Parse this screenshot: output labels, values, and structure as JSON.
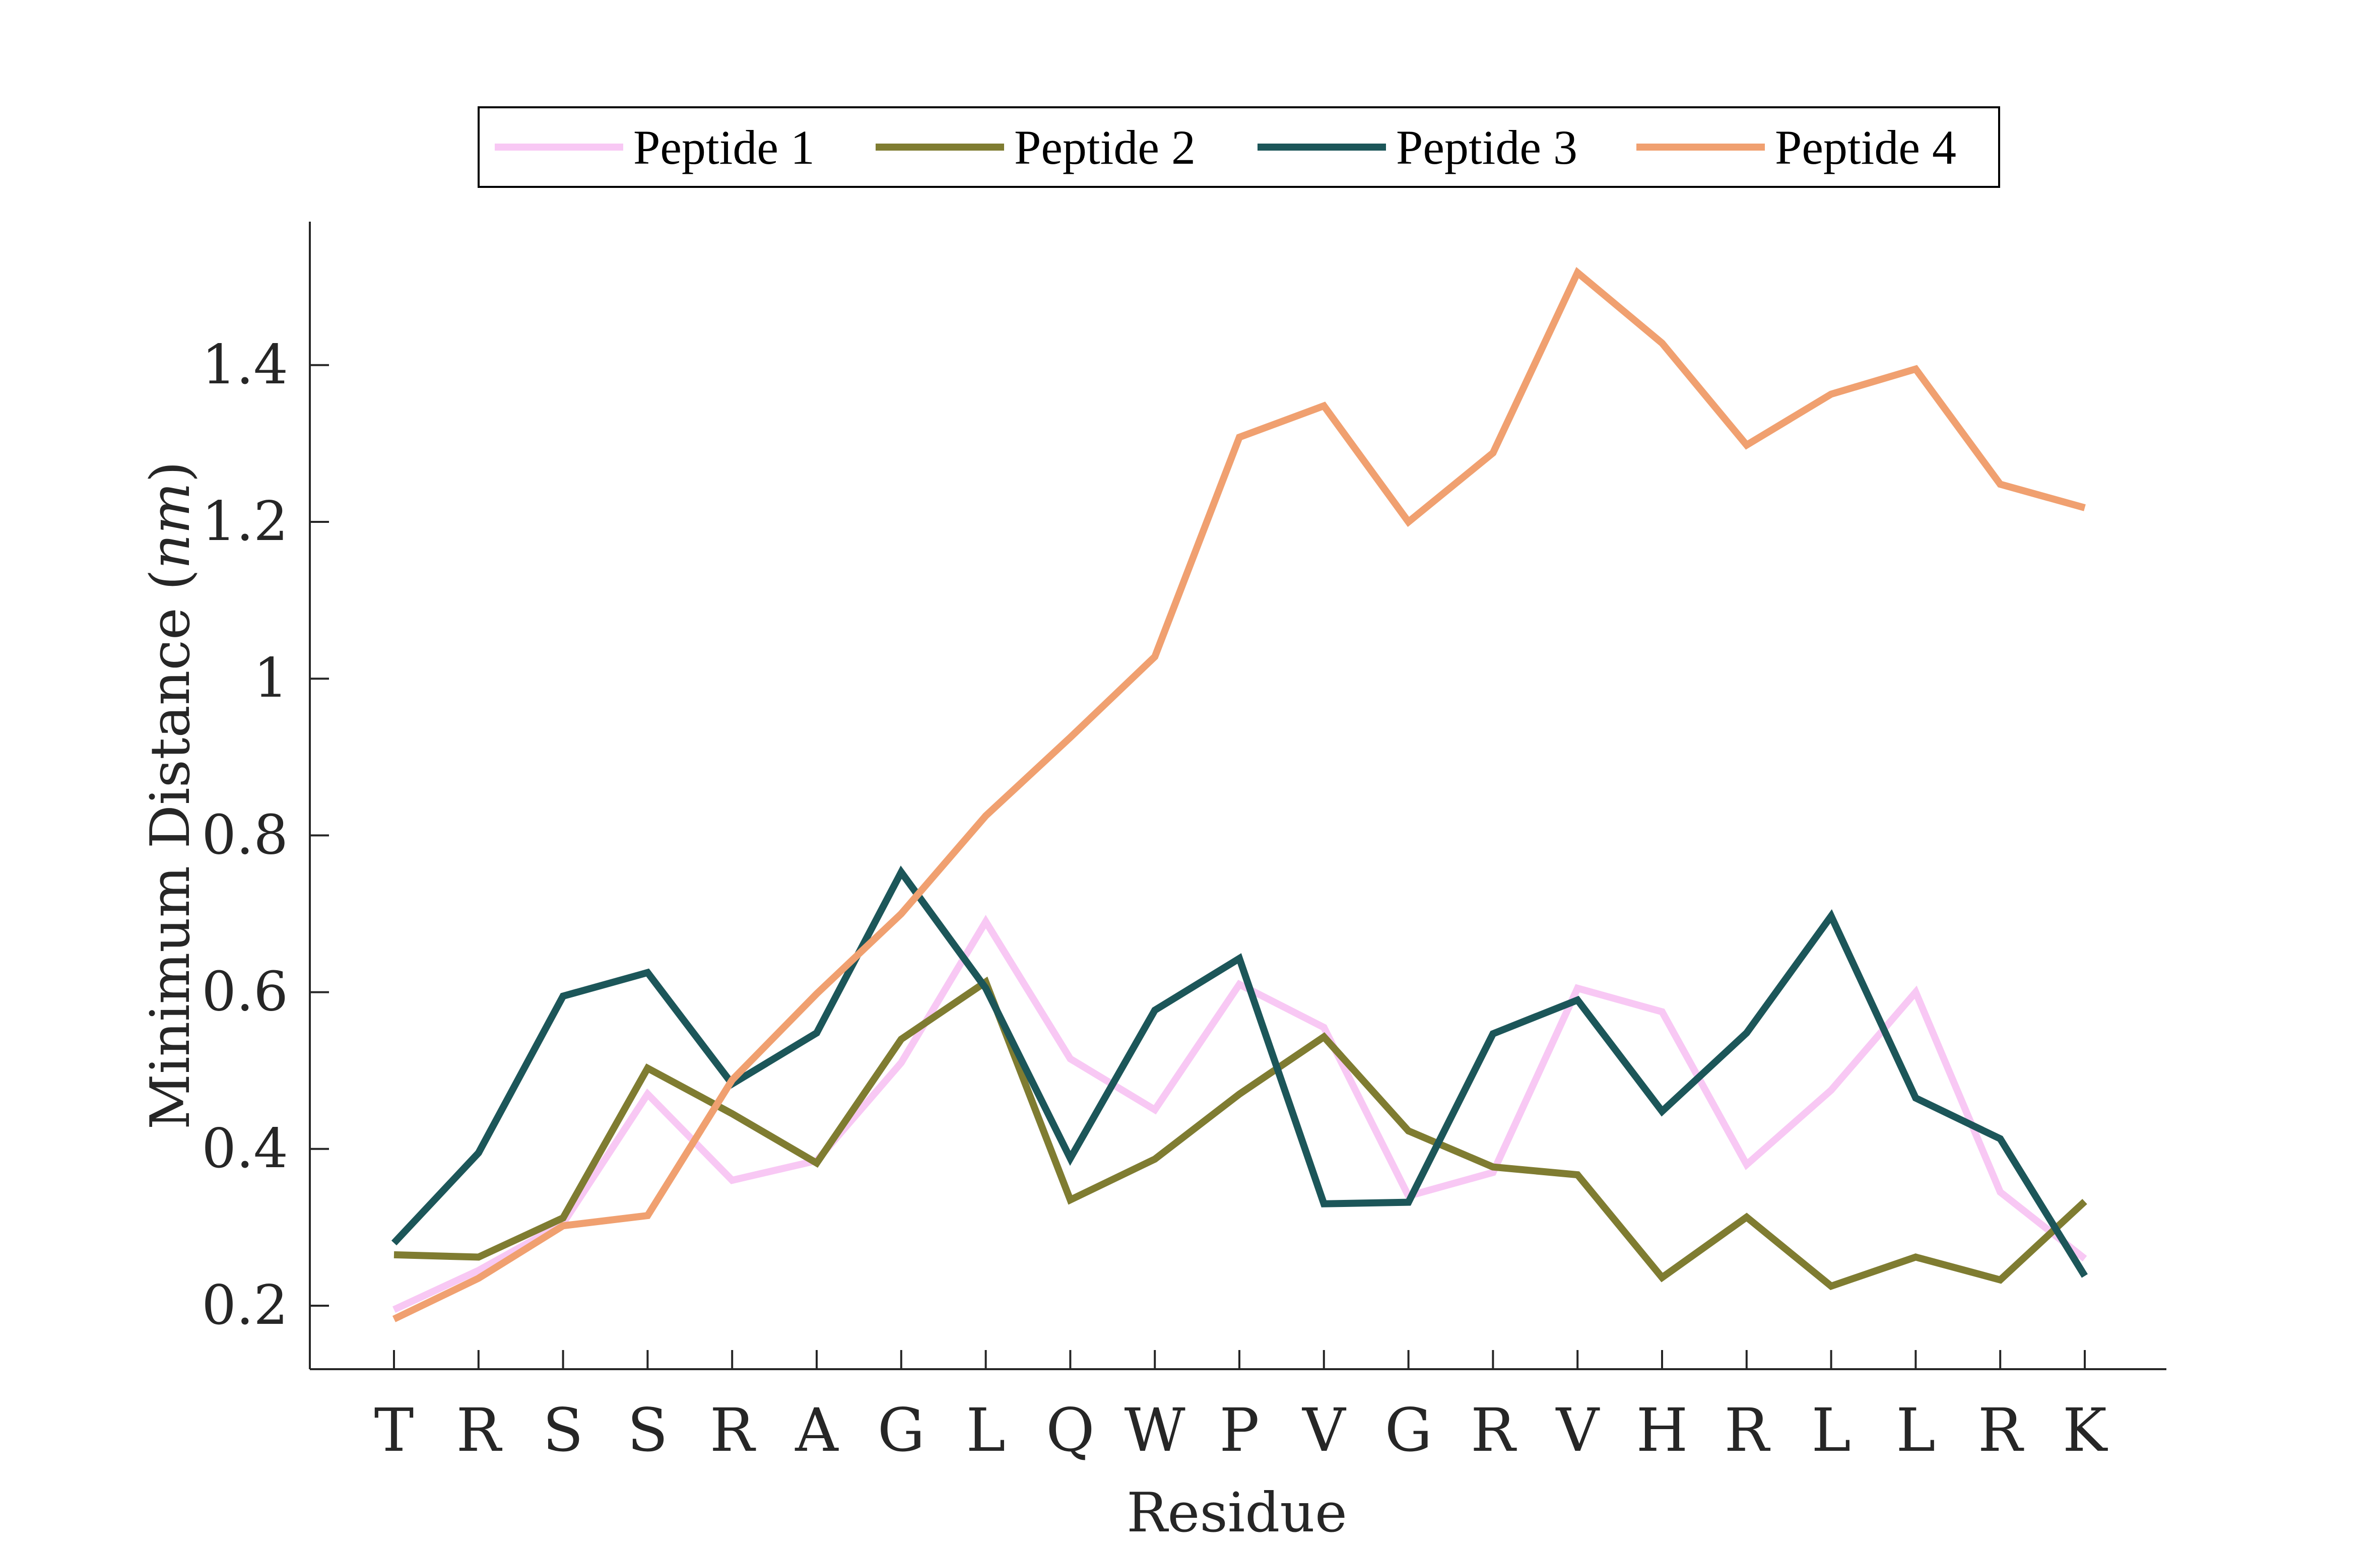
{
  "chart_data": {
    "type": "line",
    "title": "",
    "xlabel": "Residue",
    "ylabel_main": "Minimum Distance (",
    "ylabel_unit": "nm",
    "ylabel_close": ")",
    "categories": [
      "T",
      "R",
      "S",
      "S",
      "R",
      "A",
      "G",
      "L",
      "Q",
      "W",
      "P",
      "V",
      "G",
      "R",
      "V",
      "H",
      "R",
      "L",
      "L",
      "R",
      "K"
    ],
    "ylim": [
      0.16,
      1.58
    ],
    "yticks": [
      0.2,
      0.4,
      0.6,
      0.8,
      1,
      1.2,
      1.4
    ],
    "ytick_labels": [
      "0.2",
      "0.4",
      "0.6",
      "0.8",
      "1",
      "1.2",
      "1.4"
    ],
    "grid": false,
    "legend_position": "top-center",
    "series": [
      {
        "name": "Peptide 1",
        "color": "#F8C8F4",
        "values": [
          0.195,
          0.245,
          0.305,
          0.47,
          0.36,
          0.385,
          0.51,
          0.69,
          0.515,
          0.45,
          0.61,
          0.555,
          0.34,
          0.37,
          0.605,
          0.575,
          0.38,
          0.475,
          0.6,
          0.345,
          0.26
        ]
      },
      {
        "name": "Peptide 2",
        "color": "#7F7C31",
        "values": [
          0.265,
          0.262,
          0.312,
          0.503,
          0.445,
          0.382,
          0.54,
          0.613,
          0.335,
          0.387,
          0.47,
          0.543,
          0.423,
          0.377,
          0.367,
          0.236,
          0.313,
          0.225,
          0.262,
          0.233,
          0.333
        ]
      },
      {
        "name": "Peptide 3",
        "color": "#1C5659",
        "values": [
          0.28,
          0.395,
          0.595,
          0.625,
          0.483,
          0.548,
          0.753,
          0.605,
          0.388,
          0.577,
          0.643,
          0.33,
          0.332,
          0.547,
          0.59,
          0.448,
          0.548,
          0.697,
          0.465,
          0.413,
          0.238
        ]
      },
      {
        "name": "Peptide 4",
        "color": "#F0A070",
        "values": [
          0.183,
          0.235,
          0.302,
          0.315,
          0.488,
          0.598,
          0.7,
          0.825,
          0.925,
          1.028,
          1.308,
          1.348,
          1.2,
          1.288,
          1.518,
          1.428,
          1.298,
          1.363,
          1.395,
          1.248,
          1.218
        ]
      }
    ]
  }
}
